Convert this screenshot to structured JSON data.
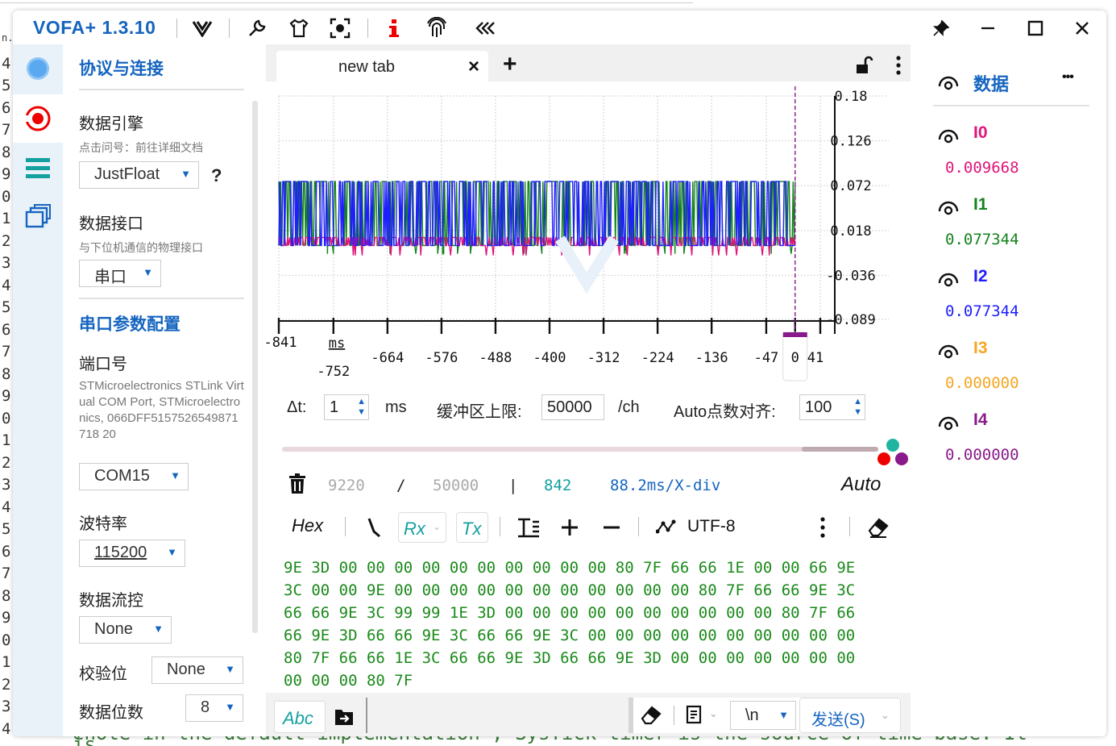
{
  "window": {
    "app_name": "VOFA+ 1.3.10"
  },
  "background_editor": {
    "line_numbers": [
      "n.",
      "4",
      "5",
      "6",
      "7",
      "8",
      "9",
      "0",
      "1",
      "2",
      "3",
      "4",
      "5",
      "6",
      "7",
      "8",
      "9",
      "0",
      "1",
      "2",
      "3",
      "4",
      "5",
      "6",
      "7",
      "8",
      "9",
      "0",
      "1",
      "2",
      "3",
      "4"
    ],
    "bottom_text": "enote in the default implementation , SysTick timer is the source of time base. It is"
  },
  "sidebar": {
    "section1_title": "协议与连接",
    "engine_label": "数据引擎",
    "engine_hint": "点击问号：前往详细文档",
    "engine_value": "JustFloat",
    "engine_help": "?",
    "interface_label": "数据接口",
    "interface_hint": "与下位机通信的物理接口",
    "interface_value": "串口",
    "section2_title": "串口参数配置",
    "port_label": "端口号",
    "port_desc": "STMicroelectronics STLink Virtual COM Port, STMicroelectronics, 066DFF5157526549871718 20",
    "port_value": "COM15",
    "baud_label": "波特率",
    "baud_value": "115200",
    "flow_label": "数据流控",
    "flow_value": "None",
    "parity_label": "校验位",
    "parity_value": "None",
    "databits_label": "数据位数",
    "databits_value": "8"
  },
  "tabs": [
    {
      "label": "new tab",
      "close": "×"
    }
  ],
  "tab_add": "+",
  "chart_data": {
    "type": "line",
    "x_tick_labels": [
      "-841",
      "ms",
      "-752",
      "-664",
      "-576",
      "-488",
      "-400",
      "-312",
      "-224",
      "-136",
      "-47",
      "0",
      "41"
    ],
    "x_ticks": [
      -841,
      -752,
      -664,
      -576,
      -488,
      -400,
      -312,
      -224,
      -136,
      -47,
      0,
      41
    ],
    "x_unit": "ms",
    "y_tick_labels": [
      "0.18",
      "0.126",
      "0.072",
      "0.018",
      "-0.036",
      "-0.089"
    ],
    "ylim": [
      -0.089,
      0.18
    ],
    "xlim": [
      -841,
      41
    ],
    "cursor_x": 0,
    "grid": true,
    "series": [
      {
        "color": "#1e1eff",
        "min": 0.0,
        "max": 0.077
      },
      {
        "color": "#14821e",
        "min": 0.0,
        "max": 0.077
      },
      {
        "color": "#e0147a",
        "min": 0.0,
        "max": 0.0097
      }
    ],
    "signal_x_range": [
      -841,
      0
    ]
  },
  "controls": {
    "dt_label": "Δt:",
    "dt_value": "1",
    "dt_unit": "ms",
    "buffer_label": "缓冲区上限:",
    "buffer_value": "50000",
    "buffer_unit": "/ch",
    "auto_label": "Auto点数对齐:",
    "auto_value": "100"
  },
  "slider": {
    "position": 0.96
  },
  "status": {
    "count": "9220",
    "sep1": "/",
    "limit": "50000",
    "sep2": "|",
    "points": "842",
    "timediv": "88.2ms/X-div",
    "mode": "Auto"
  },
  "rx_toolbar": {
    "hex": "Hex",
    "rx": "Rx",
    "tx": "Tx",
    "encoding": "UTF-8"
  },
  "hex_lines": [
    "9E 3D 00 00 00 00 00 00 00 00 00 00 80 7F 66 66 1E 00 00 66 9E",
    "3C 00 00 9E 00 00 00 00 00 00 00 00 00 00 00 80 7F 66 66 9E 3C",
    "66 66 9E 3C 99 99 1E 3D 00 00 00 00 00 00 00 00 00 00 80 7F 66",
    "66 9E 3D 66 66 9E 3C 66 66 9E 3C 00 00 00 00 00 00 00 00 00 00",
    "80 7F 66 66 1E 3C 66 66 9E 3D 66 66 9E 3D 00 00 00 00 00 00 00",
    "00 00 00 80 7F"
  ],
  "tx": {
    "abc": "Abc",
    "newline": "\\n",
    "send": "发送(S)"
  },
  "right_panel": {
    "title": "数据",
    "more": "•••",
    "channels": [
      {
        "name": "I0",
        "value": "0.009668",
        "color": "#e0147a"
      },
      {
        "name": "I1",
        "value": "0.077344",
        "color": "#14821e"
      },
      {
        "name": "I2",
        "value": "0.077344",
        "color": "#1e1eff"
      },
      {
        "name": "I3",
        "value": "0.000000",
        "color": "#f5a623"
      },
      {
        "name": "I4",
        "value": "0.000000",
        "color": "#8a1a8a"
      }
    ]
  },
  "colors": {
    "accent": "#1565c0",
    "sidebar_bg": "#e9f2f8",
    "hex_text": "#1b8a1b"
  }
}
